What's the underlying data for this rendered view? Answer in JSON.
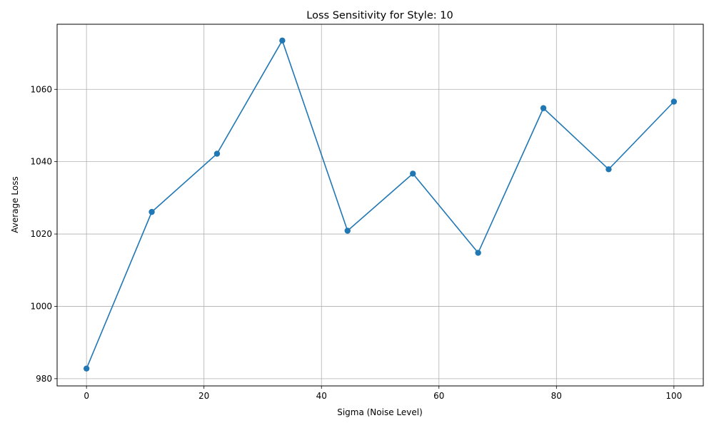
{
  "chart_data": {
    "type": "line",
    "title": "Loss Sensitivity for Style: 10",
    "xlabel": "Sigma (Noise Level)",
    "ylabel": "Average Loss",
    "xlim": [
      -5,
      105
    ],
    "ylim": [
      978,
      1078
    ],
    "xticks": [
      0,
      20,
      40,
      60,
      80,
      100
    ],
    "yticks": [
      980,
      1000,
      1020,
      1040,
      1060
    ],
    "grid": true,
    "series": [
      {
        "color": "#1f77b4",
        "marker": "circle",
        "x": [
          0,
          11.11,
          22.22,
          33.33,
          44.44,
          55.56,
          66.67,
          77.78,
          88.89,
          100
        ],
        "y": [
          982.8,
          1026.1,
          1042.2,
          1073.5,
          1020.9,
          1036.7,
          1014.8,
          1054.8,
          1037.9,
          1056.6
        ]
      }
    ]
  }
}
